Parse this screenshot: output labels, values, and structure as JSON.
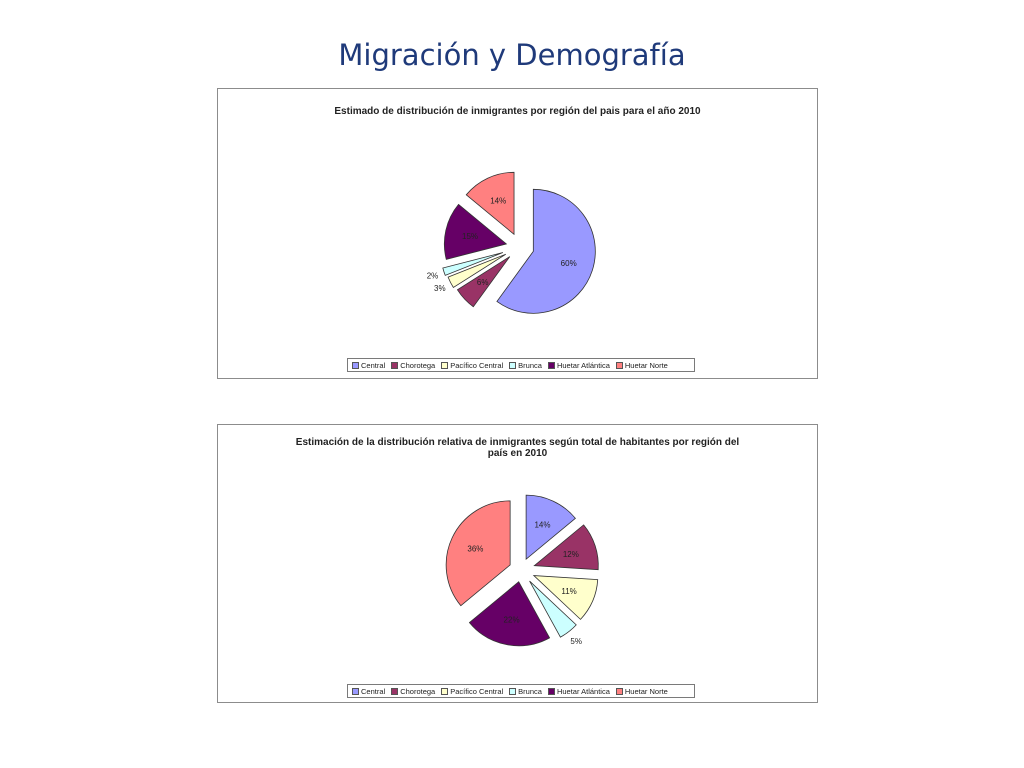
{
  "slide": {
    "title": "Migración y Demografía"
  },
  "colors": {
    "Central": "#9999ff",
    "Chorotega": "#993366",
    "Pacifico Central": "#ffffcc",
    "Brunca": "#ccffff",
    "Huetar Atlantica": "#660066",
    "Huetar Norte": "#ff8080"
  },
  "chart_data": [
    {
      "type": "pie",
      "title": "Estimado de distribución de inmigrantes por región del pais para el año 2010",
      "categories": [
        "Central",
        "Chorotega",
        "Pacífico Central",
        "Brunca",
        "Huetar Atlántica",
        "Huetar Norte"
      ],
      "values": [
        60,
        6,
        3,
        2,
        15,
        14
      ],
      "labels": [
        "60%",
        "6%",
        "3%",
        "2%",
        "15%",
        "14%"
      ],
      "exploded": true,
      "legend_position": "bottom"
    },
    {
      "type": "pie",
      "title": "Estimación de la distribución relativa de inmigrantes según total de habitantes por región del país en 2010",
      "title_lines": [
        "Estimación de la distribución relativa de inmigrantes según total de habitantes por región del",
        "país en 2010"
      ],
      "categories": [
        "Central",
        "Chorotega",
        "Pacífico Central",
        "Brunca",
        "Huetar Atlántica",
        "Huetar Norte"
      ],
      "values": [
        14,
        12,
        11,
        5,
        22,
        36
      ],
      "labels": [
        "14%",
        "12%",
        "11%",
        "5%",
        "22%",
        "36%"
      ],
      "exploded": true,
      "legend_position": "bottom"
    }
  ]
}
